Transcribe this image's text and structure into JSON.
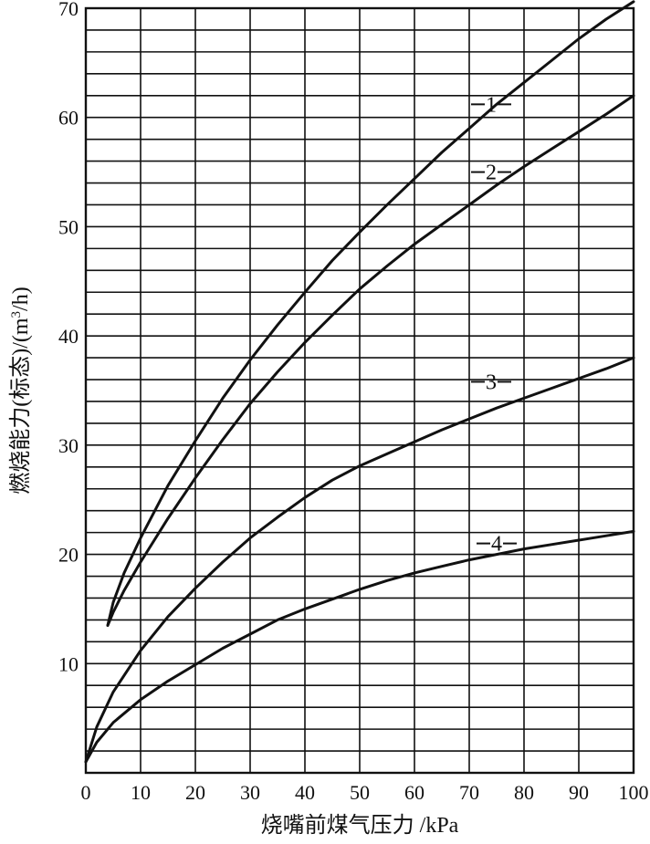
{
  "chart_data": {
    "type": "line",
    "xlabel": "烧嘴前煤气压力 /kPa",
    "ylabel": {
      "main": "燃烧能力(标态)/(m",
      "sup": "3",
      "tail": "/h)"
    },
    "xlim": [
      0,
      100
    ],
    "ylim": [
      0,
      70
    ],
    "xticks": [
      0,
      10,
      20,
      30,
      40,
      50,
      60,
      70,
      80,
      90,
      100
    ],
    "yticks": [
      10,
      20,
      30,
      40,
      50,
      60,
      70
    ],
    "grid": {
      "vertical_step": 10,
      "horizontal_step": 2
    },
    "series": [
      {
        "name": "1",
        "x": [
          4,
          5,
          7,
          10,
          15,
          20,
          25,
          30,
          35,
          40,
          45,
          50,
          55,
          60,
          65,
          70,
          75,
          80,
          85,
          90,
          95,
          100
        ],
        "y": [
          13.5,
          15.6,
          18.3,
          21.5,
          26.3,
          30.4,
          34.3,
          37.8,
          41,
          44,
          46.9,
          49.5,
          52,
          54.4,
          56.8,
          59,
          61.2,
          63.2,
          65.2,
          67.2,
          69,
          70.8
        ]
      },
      {
        "name": "2",
        "x": [
          4,
          5,
          7,
          10,
          15,
          20,
          25,
          30,
          35,
          40,
          45,
          50,
          55,
          60,
          65,
          70,
          75,
          80,
          85,
          90,
          95,
          100
        ],
        "y": [
          13.5,
          14.7,
          16.7,
          19.3,
          23.3,
          27,
          30.5,
          33.8,
          36.7,
          39.4,
          41.9,
          44.3,
          46.4,
          48.4,
          50.2,
          52,
          53.8,
          55.5,
          57.1,
          58.7,
          60.3,
          62
        ]
      },
      {
        "name": "3",
        "x": [
          0,
          2,
          5,
          10,
          15,
          20,
          25,
          30,
          35,
          40,
          45,
          50,
          55,
          60,
          65,
          70,
          75,
          80,
          85,
          90,
          95,
          100
        ],
        "y": [
          1,
          4.2,
          7.4,
          11.2,
          14.3,
          16.9,
          19.3,
          21.5,
          23.4,
          25.2,
          26.8,
          28.1,
          29.2,
          30.3,
          31.4,
          32.4,
          33.4,
          34.3,
          35.2,
          36.1,
          37,
          38
        ]
      },
      {
        "name": "4",
        "x": [
          0,
          2,
          5,
          10,
          15,
          20,
          25,
          30,
          35,
          40,
          45,
          50,
          55,
          60,
          65,
          70,
          75,
          80,
          85,
          90,
          95,
          100
        ],
        "y": [
          1,
          2.8,
          4.6,
          6.7,
          8.4,
          9.9,
          11.4,
          12.7,
          14,
          15,
          15.9,
          16.8,
          17.6,
          18.3,
          18.9,
          19.5,
          20,
          20.5,
          20.9,
          21.3,
          21.7,
          22.1
        ]
      }
    ],
    "curve_labels": [
      {
        "series": "1",
        "text": "1",
        "x": 74,
        "y": 61.2
      },
      {
        "series": "2",
        "text": "2",
        "x": 74,
        "y": 55
      },
      {
        "series": "3",
        "text": "3",
        "x": 74,
        "y": 35.8
      },
      {
        "series": "4",
        "text": "4",
        "x": 75,
        "y": 21
      }
    ]
  }
}
